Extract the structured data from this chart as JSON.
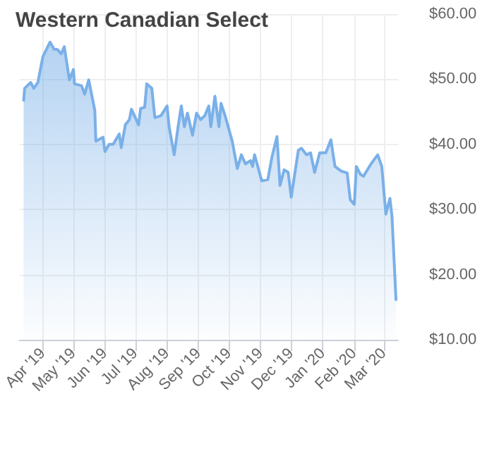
{
  "chart_data": {
    "type": "area",
    "title": "Western Canadian Select",
    "x": [
      "2019-03-13",
      "2019-03-14",
      "2019-03-20",
      "2019-03-23",
      "2019-03-27",
      "2019-04-01",
      "2019-04-08",
      "2019-04-12",
      "2019-04-15",
      "2019-04-19",
      "2019-04-22",
      "2019-04-27",
      "2019-05-01",
      "2019-05-02",
      "2019-05-09",
      "2019-05-12",
      "2019-05-16",
      "2019-05-22",
      "2019-05-23",
      "2019-05-30",
      "2019-06-01",
      "2019-06-05",
      "2019-06-09",
      "2019-06-15",
      "2019-06-17",
      "2019-06-21",
      "2019-06-25",
      "2019-06-27",
      "2019-07-04",
      "2019-07-06",
      "2019-07-10",
      "2019-07-12",
      "2019-07-17",
      "2019-07-20",
      "2019-07-26",
      "2019-08-01",
      "2019-08-03",
      "2019-08-08",
      "2019-08-12",
      "2019-08-15",
      "2019-08-18",
      "2019-08-21",
      "2019-08-26",
      "2019-08-30",
      "2019-09-03",
      "2019-09-07",
      "2019-09-11",
      "2019-09-13",
      "2019-09-17",
      "2019-09-21",
      "2019-09-23",
      "2019-09-27",
      "2019-10-04",
      "2019-10-09",
      "2019-10-13",
      "2019-10-17",
      "2019-10-22",
      "2019-10-24",
      "2019-10-26",
      "2019-11-02",
      "2019-11-08",
      "2019-11-12",
      "2019-11-17",
      "2019-11-20",
      "2019-11-24",
      "2019-11-28",
      "2019-12-01",
      "2019-12-08",
      "2019-12-11",
      "2019-12-16",
      "2019-12-20",
      "2019-12-24",
      "2019-12-29",
      "2020-01-04",
      "2020-01-09",
      "2020-01-13",
      "2020-01-19",
      "2020-01-25",
      "2020-01-28",
      "2020-02-01",
      "2020-02-03",
      "2020-02-07",
      "2020-02-10",
      "2020-02-17",
      "2020-02-24",
      "2020-02-28",
      "2020-03-03",
      "2020-03-07",
      "2020-03-09",
      "2020-03-13"
    ],
    "series": [
      {
        "color": "#7ab0e8",
        "values": [
          46.6,
          48.6,
          49.5,
          48.6,
          49.5,
          53.5,
          55.7,
          54.6,
          54.6,
          53.9,
          55.0,
          49.9,
          51.5,
          49.3,
          49.0,
          47.7,
          49.9,
          45.2,
          40.5,
          41.1,
          38.9,
          40.0,
          40.0,
          41.6,
          39.5,
          43.0,
          43.8,
          45.4,
          43.0,
          45.5,
          45.7,
          49.3,
          48.6,
          44.1,
          44.4,
          45.9,
          42.7,
          38.4,
          42.9,
          45.9,
          42.7,
          44.8,
          41.4,
          44.8,
          43.8,
          44.4,
          45.9,
          42.7,
          47.4,
          42.7,
          46.3,
          44.4,
          40.5,
          36.3,
          38.4,
          37.0,
          37.5,
          36.6,
          38.4,
          34.4,
          34.6,
          38.0,
          41.2,
          33.7,
          36.1,
          35.7,
          31.9,
          39.1,
          39.4,
          38.4,
          38.7,
          35.7,
          38.7,
          38.7,
          40.7,
          36.6,
          35.9,
          35.6,
          31.5,
          30.8,
          36.6,
          35.4,
          35.1,
          36.9,
          38.4,
          36.6,
          29.3,
          31.7,
          29.0,
          16.0
        ]
      }
    ],
    "xlim": [
      "2019-03-09",
      "2020-03-15"
    ],
    "xticks": [
      {
        "value": "2019-04-01",
        "label": "Apr '19"
      },
      {
        "value": "2019-05-01",
        "label": "May '19"
      },
      {
        "value": "2019-06-01",
        "label": "Jun '19"
      },
      {
        "value": "2019-07-01",
        "label": "Jul '19"
      },
      {
        "value": "2019-08-01",
        "label": "Aug '19"
      },
      {
        "value": "2019-09-01",
        "label": "Sep '19"
      },
      {
        "value": "2019-10-01",
        "label": "Oct '19"
      },
      {
        "value": "2019-11-01",
        "label": "Nov '19"
      },
      {
        "value": "2019-12-01",
        "label": "Dec '19"
      },
      {
        "value": "2020-01-01",
        "label": "Jan '20"
      },
      {
        "value": "2020-02-01",
        "label": "Feb '20"
      },
      {
        "value": "2020-03-01",
        "label": "Mar '20"
      }
    ],
    "ylim": [
      10,
      60
    ],
    "yticks": [
      {
        "value": 10,
        "label": "$10.00"
      },
      {
        "value": 20,
        "label": "$20.00"
      },
      {
        "value": 30,
        "label": "$30.00"
      },
      {
        "value": 40,
        "label": "$40.00"
      },
      {
        "value": 50,
        "label": "$50.00"
      },
      {
        "value": 60,
        "label": "$60.00"
      }
    ],
    "grid": true
  }
}
